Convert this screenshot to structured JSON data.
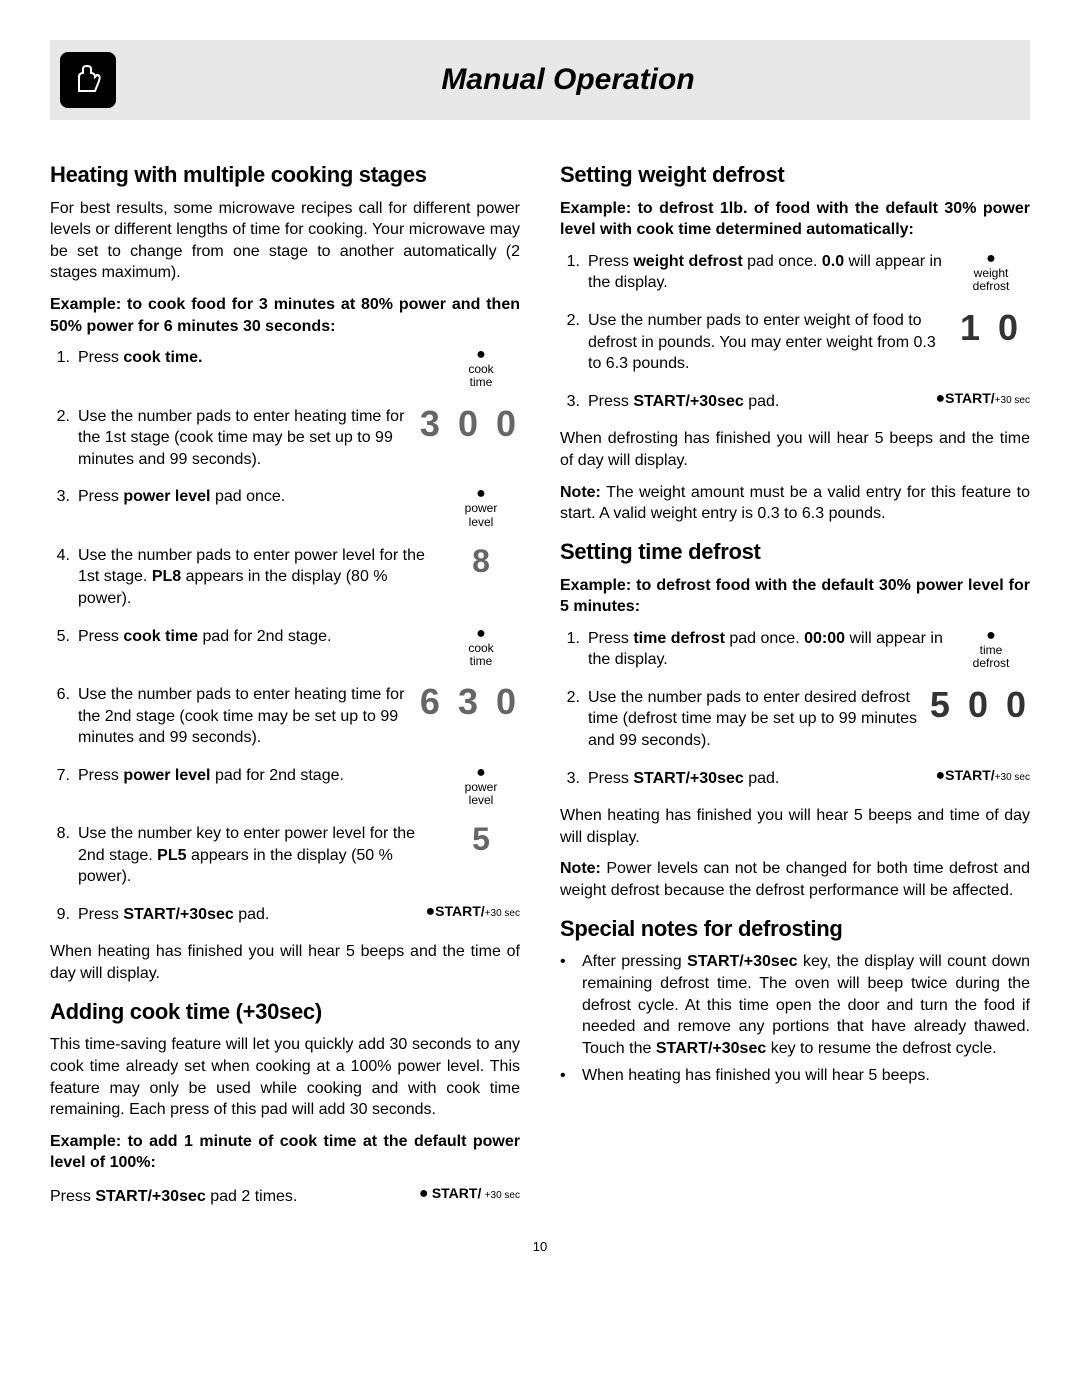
{
  "page_number": "10",
  "header": {
    "title": "Manual Operation"
  },
  "left": {
    "h1": "Heating with multiple cooking stages",
    "p1": "For best results, some microwave recipes call for different power levels or different lengths of time for cooking. Your microwave may be set to change from one stage to another automatically (2 stages maximum).",
    "ex1": "Example: to cook food for 3 minutes at 80% power and then 50% power for 6 minutes 30 seconds:",
    "steps1": [
      {
        "n": "1.",
        "pre": "Press ",
        "b": "cook time.",
        "post": "",
        "side_type": "pad",
        "side_label1": "cook",
        "side_label2": "time"
      },
      {
        "n": "2.",
        "pre": "Use the number pads to enter heating time for the 1st stage (cook time may be set up to 99 minutes and 99 seconds).",
        "side_type": "bignum",
        "side_value": "3 0 0"
      },
      {
        "n": "3.",
        "pre": "Press ",
        "b": "power level",
        "post": " pad once.",
        "side_type": "pad",
        "side_label1": "power",
        "side_label2": "level"
      },
      {
        "n": "4.",
        "pre": "Use the number pads to enter power level for the 1st stage. ",
        "b": "PL8",
        "post": " appears in the display (80 % power).",
        "side_type": "single",
        "side_value": "8"
      },
      {
        "n": "5.",
        "pre": "Press ",
        "b": "cook time",
        "post": " pad for 2nd stage.",
        "side_type": "pad",
        "side_label1": "cook",
        "side_label2": "time"
      },
      {
        "n": "6.",
        "pre": "Use the number pads to enter heating time for the 2nd stage (cook time may be set up to 99 minutes and 99 seconds).",
        "side_type": "bignum",
        "side_value": "6 3 0"
      },
      {
        "n": "7.",
        "pre": "Press ",
        "b": "power level",
        "post": " pad for 2nd stage.",
        "side_type": "pad",
        "side_label1": "power",
        "side_label2": "level"
      },
      {
        "n": "8.",
        "pre": "Use the number key to enter power level for the 2nd stage. ",
        "b": "PL5",
        "post": " appears in the display (50 % power).",
        "side_type": "single",
        "side_value": "5"
      },
      {
        "n": "9.",
        "pre": "Press ",
        "b": "START/+30sec",
        "post": " pad.",
        "side_type": "start"
      }
    ],
    "after1": "When heating has finished you will hear 5 beeps and the time of day will display.",
    "h2": "Adding cook time (+30sec)",
    "p2": "This time-saving feature will let you quickly add 30 seconds to any cook time already set when cooking at a 100% power level. This feature may only be used while cooking and with cook time remaining. Each press of this pad will add 30 seconds.",
    "ex2": "Example: to add 1 minute of cook time at the default power level of 100%:",
    "press2_pre": "Press ",
    "press2_b": "START/+30sec",
    "press2_post": " pad 2 times."
  },
  "right": {
    "h1": "Setting weight defrost",
    "ex1": "Example: to defrost 1lb. of food with the default 30% power level with cook time determined automatically:",
    "steps1": [
      {
        "n": "1.",
        "pre": "Press ",
        "b": "weight defrost",
        "post": " pad once. ",
        "b2": "0.0",
        "post2": " will appear in the display.",
        "side_type": "pad",
        "side_label1": "weight",
        "side_label2": "defrost"
      },
      {
        "n": "2.",
        "pre": "Use the number pads to enter weight of food to defrost in pounds. You may enter weight from 0.3 to 6.3 pounds.",
        "side_type": "bignum_dark",
        "side_value": "1 0"
      },
      {
        "n": "3.",
        "pre": "Press ",
        "b": "START/+30sec",
        "post": " pad.",
        "side_type": "start"
      }
    ],
    "after1": "When defrosting has finished you will hear 5 beeps and the time of day will display.",
    "note1_label": "Note:",
    "note1": " The weight amount must be a valid entry for this feature to start. A valid weight entry is 0.3 to 6.3 pounds.",
    "h2": "Setting time defrost",
    "ex2": "Example: to defrost food with the default 30% power level for 5 minutes:",
    "steps2": [
      {
        "n": "1.",
        "pre": "Press ",
        "b": "time defrost",
        "post": " pad once. ",
        "b2": "00:00",
        "post2": " will appear in the display.",
        "side_type": "pad",
        "side_label1": "time",
        "side_label2": "defrost"
      },
      {
        "n": "2.",
        "pre": "Use the number pads to enter desired defrost time (defrost time may be set up to 99 minutes and 99 seconds).",
        "side_type": "bignum_dark",
        "side_value": "5 0 0"
      },
      {
        "n": "3.",
        "pre": "Press ",
        "b": "START/+30sec",
        "post": " pad.",
        "side_type": "start"
      }
    ],
    "after2": "When heating has finished you will hear 5 beeps and time of day will display.",
    "note2_label": "Note:",
    "note2": "  Power levels can not be changed for both time defrost and weight defrost because the defrost performance will be affected.",
    "h3": "Special notes for defrosting",
    "bullets": [
      {
        "pre": "After pressing ",
        "b": "START/+30sec",
        "post": " key, the display will count down remaining defrost time. The oven will beep twice during the defrost cycle. At this time open the door and turn the food if needed and remove any portions that have already thawed. Touch the ",
        "b2": "START/+30sec",
        "post2": " key to resume the defrost cycle."
      },
      {
        "pre": "When heating has finished you will hear 5 beeps."
      }
    ]
  },
  "start_pad": {
    "label": "START/",
    "sub": "+30 sec"
  }
}
